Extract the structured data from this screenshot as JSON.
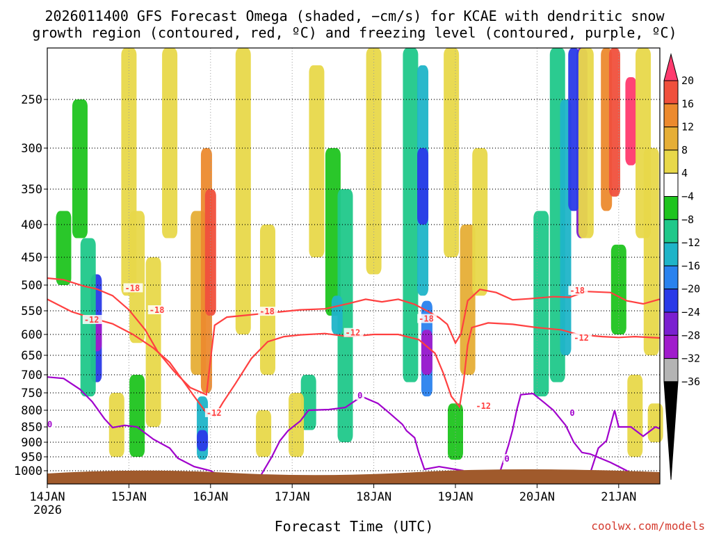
{
  "chart_data": {
    "type": "heatmap",
    "title_line1": "2026011400 GFS Forecast Omega (shaded, −cm/s) for KCAE with dendritic snow",
    "title_line2": "growth region (contoured, red, ºC) and freezing level (contoured, purple, ºC)",
    "xlabel": "Forecast Time (UTC)",
    "x_ticks": [
      {
        "label": "14JAN",
        "day": 0
      },
      {
        "label": "15JAN",
        "day": 1
      },
      {
        "label": "16JAN",
        "day": 2
      },
      {
        "label": "17JAN",
        "day": 3
      },
      {
        "label": "18JAN",
        "day": 4
      },
      {
        "label": "19JAN",
        "day": 5
      },
      {
        "label": "20JAN",
        "day": 6
      },
      {
        "label": "21JAN",
        "day": 7
      }
    ],
    "x_year_label": "2026",
    "xlim_days": [
      0,
      7.5
    ],
    "y_ticks": [
      250,
      300,
      350,
      400,
      450,
      500,
      550,
      600,
      650,
      700,
      750,
      800,
      850,
      900,
      950,
      1000
    ],
    "ylim_hpa": [
      1030,
      200
    ],
    "colorbar": {
      "labels": [
        "20",
        "16",
        "12",
        "8",
        "4",
        "−4",
        "−8",
        "−12",
        "−16",
        "−20",
        "−24",
        "−28",
        "−32",
        "−36"
      ],
      "colors": [
        "#ff3a6e",
        "#f0503c",
        "#ec8a2e",
        "#e6ae36",
        "#e8d84a",
        "#ffffff",
        "#1fc41f",
        "#20c88a",
        "#1fb4c8",
        "#2a82ee",
        "#2a3ae8",
        "#7a20d0",
        "#a01ccc",
        "#b4b4b4",
        "#000000"
      ]
    },
    "contours": [
      {
        "name": "-18C",
        "label": "-18",
        "color": "#ff4040",
        "points": [
          [
            0.0,
            487
          ],
          [
            0.2,
            490
          ],
          [
            0.45,
            502
          ],
          [
            0.6,
            507
          ],
          [
            0.8,
            520
          ],
          [
            1.0,
            548
          ],
          [
            1.2,
            590
          ],
          [
            1.35,
            640
          ],
          [
            1.55,
            690
          ],
          [
            1.75,
            735
          ],
          [
            1.95,
            755
          ],
          [
            2.0,
            660
          ],
          [
            2.05,
            580
          ],
          [
            2.2,
            563
          ],
          [
            2.5,
            558
          ],
          [
            2.8,
            553
          ],
          [
            3.1,
            548
          ],
          [
            3.4,
            546
          ],
          [
            3.7,
            535
          ],
          [
            3.9,
            527
          ],
          [
            4.1,
            532
          ],
          [
            4.3,
            527
          ],
          [
            4.5,
            537
          ],
          [
            4.65,
            550
          ],
          [
            4.8,
            564
          ],
          [
            4.9,
            578
          ],
          [
            5.0,
            620
          ],
          [
            5.07,
            598
          ],
          [
            5.15,
            530
          ],
          [
            5.3,
            508
          ],
          [
            5.5,
            514
          ],
          [
            5.7,
            528
          ],
          [
            5.9,
            526
          ],
          [
            6.2,
            522
          ],
          [
            6.4,
            523
          ],
          [
            6.6,
            512
          ],
          [
            6.9,
            514
          ],
          [
            7.1,
            530
          ],
          [
            7.3,
            536
          ],
          [
            7.5,
            527
          ]
        ]
      },
      {
        "name": "-12C",
        "label": "-12",
        "color": "#ff4040",
        "points": [
          [
            0.0,
            527
          ],
          [
            0.3,
            552
          ],
          [
            0.55,
            565
          ],
          [
            0.8,
            577
          ],
          [
            1.05,
            600
          ],
          [
            1.3,
            632
          ],
          [
            1.5,
            668
          ],
          [
            1.65,
            712
          ],
          [
            1.8,
            760
          ],
          [
            1.95,
            808
          ],
          [
            2.05,
            818
          ],
          [
            2.15,
            778
          ],
          [
            2.3,
            726
          ],
          [
            2.5,
            658
          ],
          [
            2.7,
            617
          ],
          [
            2.9,
            605
          ],
          [
            3.1,
            601
          ],
          [
            3.4,
            598
          ],
          [
            3.7,
            605
          ],
          [
            4.0,
            600
          ],
          [
            4.3,
            600
          ],
          [
            4.55,
            612
          ],
          [
            4.75,
            645
          ],
          [
            4.85,
            695
          ],
          [
            4.95,
            760
          ],
          [
            5.05,
            790
          ],
          [
            5.1,
            720
          ],
          [
            5.15,
            625
          ],
          [
            5.2,
            585
          ],
          [
            5.4,
            575
          ],
          [
            5.7,
            578
          ],
          [
            6.0,
            585
          ],
          [
            6.3,
            590
          ],
          [
            6.5,
            600
          ],
          [
            6.8,
            605
          ],
          [
            7.0,
            607
          ],
          [
            7.2,
            605
          ],
          [
            7.5,
            608
          ]
        ]
      },
      {
        "name": "0C",
        "label": "0",
        "color": "#a000cc",
        "points": [
          [
            0.0,
            706
          ],
          [
            0.2,
            710
          ],
          [
            0.4,
            740
          ],
          [
            0.55,
            775
          ],
          [
            0.7,
            825
          ],
          [
            0.8,
            852
          ],
          [
            0.95,
            845
          ],
          [
            1.1,
            850
          ],
          [
            1.3,
            890
          ],
          [
            1.5,
            920
          ],
          [
            1.6,
            955
          ],
          [
            1.8,
            985
          ],
          [
            2.0,
            1000
          ],
          [
            2.15,
            1025
          ]
        ],
        "segments": [
          [
            [
              2.6,
              1025
            ],
            [
              2.75,
              950
            ],
            [
              2.85,
              895
            ],
            [
              2.95,
              862
            ],
            [
              3.1,
              832
            ],
            [
              3.2,
              800
            ],
            [
              3.45,
              798
            ],
            [
              3.65,
              792
            ],
            [
              3.85,
              760
            ],
            [
              4.05,
              780
            ],
            [
              4.2,
              810
            ],
            [
              4.35,
              842
            ],
            [
              4.4,
              862
            ],
            [
              4.5,
              885
            ],
            [
              4.55,
              935
            ],
            [
              4.62,
              995
            ],
            [
              4.8,
              985
            ],
            [
              5.0,
              995
            ],
            [
              5.1,
              1000
            ]
          ],
          [
            [
              6.65,
              1010
            ],
            [
              6.75,
              920
            ],
            [
              6.85,
              895
            ],
            [
              6.95,
              800
            ],
            [
              7.0,
              850
            ],
            [
              7.15,
              850
            ],
            [
              7.3,
              880
            ],
            [
              7.45,
              850
            ],
            [
              7.5,
              855
            ]
          ],
          [
            [
              5.55,
              1000
            ],
            [
              5.65,
              910
            ],
            [
              5.7,
              860
            ],
            [
              5.75,
              800
            ],
            [
              5.8,
              755
            ],
            [
              5.95,
              752
            ],
            [
              6.1,
              780
            ],
            [
              6.2,
              800
            ],
            [
              6.35,
              845
            ],
            [
              6.45,
              900
            ],
            [
              6.55,
              935
            ],
            [
              6.65,
              940
            ],
            [
              6.9,
              970
            ],
            [
              7.1,
              1000
            ],
            [
              7.2,
              1020
            ]
          ]
        ]
      }
    ],
    "contour_labels": [
      {
        "text": "-18",
        "day": 0.95,
        "p": 507,
        "color": "#ff4040"
      },
      {
        "text": "-12",
        "day": 0.45,
        "p": 570,
        "color": "#ff4040"
      },
      {
        "text": "-18",
        "day": 1.25,
        "p": 550,
        "color": "#ff4040"
      },
      {
        "text": "-18",
        "day": 2.6,
        "p": 553,
        "color": "#ff4040"
      },
      {
        "text": "-12",
        "day": 1.95,
        "p": 810,
        "color": "#ff4040"
      },
      {
        "text": "-12",
        "day": 3.65,
        "p": 598,
        "color": "#ff4040"
      },
      {
        "text": "-18",
        "day": 4.55,
        "p": 568,
        "color": "#ff4040"
      },
      {
        "text": "-12",
        "day": 5.25,
        "p": 790,
        "color": "#ff4040"
      },
      {
        "text": "-18",
        "day": 6.4,
        "p": 512,
        "color": "#ff4040"
      },
      {
        "text": "-12",
        "day": 6.45,
        "p": 610,
        "color": "#ff4040"
      },
      {
        "text": "0",
        "day": 0.0,
        "p": 845,
        "color": "#a000cc"
      },
      {
        "text": "0",
        "day": 3.8,
        "p": 760,
        "color": "#a000cc"
      },
      {
        "text": "0",
        "day": 5.6,
        "p": 960,
        "color": "#a000cc"
      },
      {
        "text": "0",
        "day": 6.4,
        "p": 810,
        "color": "#a000cc"
      }
    ],
    "omega_cells": [
      {
        "day": 0.6,
        "p0": 480,
        "p1": 720,
        "val": -22
      },
      {
        "day": 0.6,
        "p0": 560,
        "p1": 640,
        "val": -30
      },
      {
        "day": 0.5,
        "p0": 420,
        "p1": 760,
        "val": -10
      },
      {
        "day": 0.4,
        "p0": 250,
        "p1": 420,
        "val": -6
      },
      {
        "day": 1.0,
        "p0": 200,
        "p1": 520,
        "val": 5
      },
      {
        "day": 1.1,
        "p0": 380,
        "p1": 620,
        "val": 6
      },
      {
        "day": 1.3,
        "p0": 450,
        "p1": 850,
        "val": 6
      },
      {
        "day": 1.1,
        "p0": 700,
        "p1": 950,
        "val": -6
      },
      {
        "day": 1.85,
        "p0": 380,
        "p1": 700,
        "val": 9
      },
      {
        "day": 1.95,
        "p0": 300,
        "p1": 750,
        "val": 14
      },
      {
        "day": 2.0,
        "p0": 350,
        "p1": 560,
        "val": 17
      },
      {
        "day": 1.5,
        "p0": 200,
        "p1": 420,
        "val": 5
      },
      {
        "day": 1.9,
        "p0": 760,
        "p1": 960,
        "val": -14
      },
      {
        "day": 1.9,
        "p0": 860,
        "p1": 930,
        "val": -22
      },
      {
        "day": 2.4,
        "p0": 200,
        "p1": 600,
        "val": 5
      },
      {
        "day": 2.7,
        "p0": 400,
        "p1": 700,
        "val": 5
      },
      {
        "day": 3.3,
        "p0": 220,
        "p1": 450,
        "val": 5
      },
      {
        "day": 3.2,
        "p0": 700,
        "p1": 860,
        "val": -9
      },
      {
        "day": 3.5,
        "p0": 300,
        "p1": 560,
        "val": -7
      },
      {
        "day": 3.65,
        "p0": 350,
        "p1": 900,
        "val": -9
      },
      {
        "day": 3.55,
        "p0": 520,
        "p1": 600,
        "val": -13
      },
      {
        "day": 4.0,
        "p0": 200,
        "p1": 480,
        "val": 5
      },
      {
        "day": 4.45,
        "p0": 200,
        "p1": 720,
        "val": -8
      },
      {
        "day": 4.6,
        "p0": 220,
        "p1": 520,
        "val": -12
      },
      {
        "day": 4.65,
        "p0": 530,
        "p1": 760,
        "val": -16
      },
      {
        "day": 4.65,
        "p0": 590,
        "p1": 700,
        "val": -28
      },
      {
        "day": 4.6,
        "p0": 300,
        "p1": 400,
        "val": -20
      },
      {
        "day": 4.95,
        "p0": 200,
        "p1": 450,
        "val": 5
      },
      {
        "day": 5.15,
        "p0": 400,
        "p1": 700,
        "val": 8
      },
      {
        "day": 5.3,
        "p0": 300,
        "p1": 520,
        "val": 5
      },
      {
        "day": 5.0,
        "p0": 780,
        "p1": 960,
        "val": -7
      },
      {
        "day": 6.05,
        "p0": 380,
        "p1": 760,
        "val": -9
      },
      {
        "day": 6.25,
        "p0": 200,
        "p1": 720,
        "val": -10
      },
      {
        "day": 6.35,
        "p0": 250,
        "p1": 650,
        "val": -14
      },
      {
        "day": 6.55,
        "p0": 200,
        "p1": 420,
        "val": -26
      },
      {
        "day": 6.45,
        "p0": 200,
        "p1": 380,
        "val": -20
      },
      {
        "day": 6.6,
        "p0": 200,
        "p1": 420,
        "val": 5
      },
      {
        "day": 6.85,
        "p0": 200,
        "p1": 380,
        "val": 12
      },
      {
        "day": 6.95,
        "p0": 200,
        "p1": 360,
        "val": 18
      },
      {
        "day": 7.15,
        "p0": 230,
        "p1": 320,
        "val": 21
      },
      {
        "day": 7.3,
        "p0": 200,
        "p1": 420,
        "val": 6
      },
      {
        "day": 7.4,
        "p0": 300,
        "p1": 650,
        "val": 5
      },
      {
        "day": 7.0,
        "p0": 430,
        "p1": 600,
        "val": -7
      },
      {
        "day": 7.2,
        "p0": 700,
        "p1": 950,
        "val": 5
      },
      {
        "day": 7.45,
        "p0": 780,
        "p1": 900,
        "val": 5
      },
      {
        "day": 3.05,
        "p0": 750,
        "p1": 950,
        "val": 5
      },
      {
        "day": 0.2,
        "p0": 380,
        "p1": 500,
        "val": -6
      },
      {
        "day": 0.85,
        "p0": 750,
        "p1": 950,
        "val": 5
      },
      {
        "day": 2.65,
        "p0": 800,
        "p1": 950,
        "val": 5
      }
    ],
    "terrain_surface": {
      "p_top": 1005,
      "color": "#a05a2c"
    }
  },
  "credit": "coolwx.com/models"
}
